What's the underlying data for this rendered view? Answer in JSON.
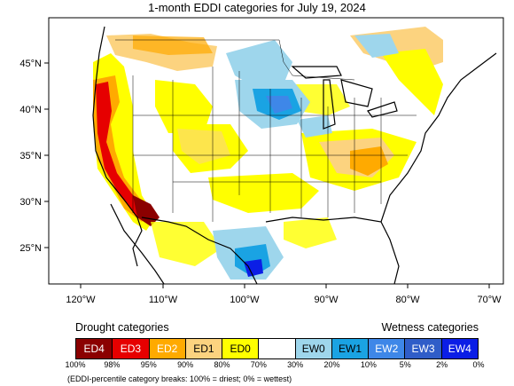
{
  "title": "1-month EDDI categories for July 19, 2024",
  "map": {
    "lat_labels": [
      "45°N",
      "40°N",
      "35°N",
      "30°N",
      "25°N"
    ],
    "lon_labels": [
      "120°W",
      "110°W",
      "100°W",
      "90°W",
      "80°W",
      "70°W"
    ]
  },
  "legend": {
    "drought_header": "Drought categories",
    "wetness_header": "Wetness categories",
    "categories": [
      {
        "label": "ED4",
        "color": "#8b0000",
        "text_color": "#ffffff"
      },
      {
        "label": "ED3",
        "color": "#e60000",
        "text_color": "#ffffff"
      },
      {
        "label": "ED2",
        "color": "#ffaa00",
        "text_color": "#ffffff"
      },
      {
        "label": "ED1",
        "color": "#fcd37f",
        "text_color": "#000000"
      },
      {
        "label": "ED0",
        "color": "#ffff00",
        "text_color": "#000000"
      },
      {
        "label": "",
        "color": "#ffffff",
        "text_color": "#000000"
      },
      {
        "label": "EW0",
        "color": "#9ed6ec",
        "text_color": "#000000"
      },
      {
        "label": "EW1",
        "color": "#1aa3e3",
        "text_color": "#000000"
      },
      {
        "label": "EW2",
        "color": "#3e87e8",
        "text_color": "#ffffff"
      },
      {
        "label": "EW3",
        "color": "#2f5dc8",
        "text_color": "#ffffff"
      },
      {
        "label": "EW4",
        "color": "#0b1ee6",
        "text_color": "#ffffff"
      }
    ],
    "breaks": [
      "100%",
      "98%",
      "95%",
      "90%",
      "80%",
      "70%",
      "30%",
      "20%",
      "10%",
      "5%",
      "2%",
      "0%"
    ]
  },
  "footnote": "(EDDI-percentile category breaks: 100% = driest; 0% = wettest)"
}
